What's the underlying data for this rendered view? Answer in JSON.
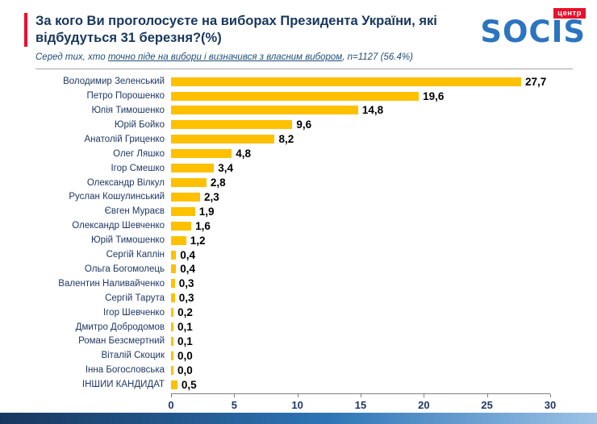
{
  "header": {
    "title": "За кого Ви проголосуєте на виборах Президента України, які відбудуться 31 березня?(%)",
    "subtitle_prefix": "Серед тих, хто ",
    "subtitle_underlined": "точно піде на вибори і визначився з власним вибором",
    "subtitle_suffix": ", n=1127 (56.4%)",
    "logo_text": "SOCIS",
    "logo_tag": "центр"
  },
  "colors": {
    "accent_red": "#E8112D",
    "title_navy": "#17375D",
    "label_navy": "#1F3864",
    "logo_blue": "#2B74C0",
    "bar_yellow": "#FFC000"
  },
  "chart_data": {
    "type": "bar",
    "orientation": "horizontal",
    "title": "За кого Ви проголосуєте на виборах Президента України, які відбудуться 31 березня?(%)",
    "subtitle": "Серед тих, хто точно піде на вибори і визначився з власним вибором, n=1127 (56.4%)",
    "categories": [
      "Володимир Зеленський",
      "Петро Порошенко",
      "Юлія Тимошенко",
      "Юрій Бойко",
      "Анатолій Гриценко",
      "Олег Ляшко",
      "Ігор Смешко",
      "Олександр Вілкул",
      "Руслан Кошулинський",
      "Євген Мураєв",
      "Олександр Шевченко",
      "Юрій Тимошенко",
      "Сергій Каплін",
      "Ольга Богомолець",
      "Валентин Наливайченко",
      "Сергій Тарута",
      "Ігор Шевченко",
      "Дмитро Добродомов",
      "Роман Безсмертний",
      "Віталій Скоцик",
      "Інна Богословська",
      "ІНШИЙ КАНДИДАТ"
    ],
    "values": [
      27.7,
      19.6,
      14.8,
      9.6,
      8.2,
      4.8,
      3.4,
      2.8,
      2.3,
      1.9,
      1.6,
      1.2,
      0.4,
      0.4,
      0.3,
      0.3,
      0.2,
      0.1,
      0.1,
      0.0,
      0.0,
      0.5
    ],
    "value_labels": [
      "27,7",
      "19,6",
      "14,8",
      "9,6",
      "8,2",
      "4,8",
      "3,4",
      "2,8",
      "2,3",
      "1,9",
      "1,6",
      "1,2",
      "0,4",
      "0,4",
      "0,3",
      "0,3",
      "0,2",
      "0,1",
      "0,1",
      "0,0",
      "0,0",
      "0,5"
    ],
    "xlabel": "",
    "ylabel": "",
    "xlim": [
      0,
      30
    ],
    "ticks": [
      0,
      5,
      10,
      15,
      20,
      25,
      30
    ],
    "bar_color": "#FFC000",
    "grid": false,
    "legend": false
  }
}
